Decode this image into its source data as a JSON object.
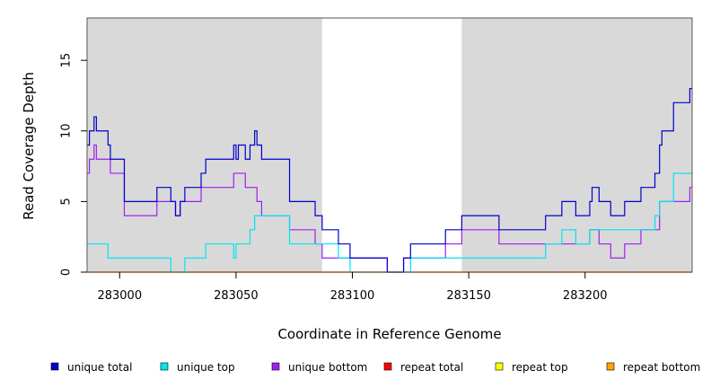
{
  "chart_data": {
    "type": "line",
    "style": "step",
    "title": "",
    "xlabel": "Coordinate in Reference Genome",
    "ylabel": "Read Coverage Depth",
    "xlim": [
      282986,
      283246
    ],
    "ylim": [
      0,
      18
    ],
    "x_ticks": [
      283000,
      283050,
      283100,
      283150,
      283200
    ],
    "y_ticks": [
      0,
      5,
      10,
      15
    ],
    "shaded_regions": [
      [
        282986,
        283087
      ],
      [
        283147,
        283246
      ]
    ],
    "shade_color": "#d9d9d9",
    "legend_position": "bottom",
    "series": [
      {
        "name": "unique total",
        "color": "#0000cd",
        "points": [
          [
            282986,
            9
          ],
          [
            282987,
            10
          ],
          [
            282989,
            11
          ],
          [
            282990,
            10
          ],
          [
            282995,
            9
          ],
          [
            282996,
            8
          ],
          [
            283002,
            5
          ],
          [
            283016,
            6
          ],
          [
            283022,
            5
          ],
          [
            283024,
            4
          ],
          [
            283026,
            5
          ],
          [
            283028,
            6
          ],
          [
            283035,
            7
          ],
          [
            283037,
            8
          ],
          [
            283049,
            9
          ],
          [
            283050,
            8
          ],
          [
            283051,
            9
          ],
          [
            283054,
            8
          ],
          [
            283056,
            9
          ],
          [
            283058,
            10
          ],
          [
            283059,
            9
          ],
          [
            283061,
            8
          ],
          [
            283073,
            5
          ],
          [
            283084,
            4
          ],
          [
            283087,
            3
          ],
          [
            283094,
            2
          ],
          [
            283099,
            1
          ],
          [
            283115,
            0
          ],
          [
            283122,
            1
          ],
          [
            283125,
            2
          ],
          [
            283140,
            3
          ],
          [
            283147,
            4
          ],
          [
            283163,
            3
          ],
          [
            283183,
            4
          ],
          [
            283190,
            5
          ],
          [
            283196,
            4
          ],
          [
            283202,
            5
          ],
          [
            283203,
            6
          ],
          [
            283206,
            5
          ],
          [
            283211,
            4
          ],
          [
            283217,
            5
          ],
          [
            283224,
            6
          ],
          [
            283230,
            7
          ],
          [
            283232,
            9
          ],
          [
            283233,
            10
          ],
          [
            283238,
            12
          ],
          [
            283245,
            13
          ]
        ]
      },
      {
        "name": "unique top",
        "color": "#00e5ee",
        "points": [
          [
            282986,
            2
          ],
          [
            282995,
            1
          ],
          [
            283022,
            0
          ],
          [
            283028,
            1
          ],
          [
            283037,
            2
          ],
          [
            283049,
            1
          ],
          [
            283050,
            2
          ],
          [
            283056,
            3
          ],
          [
            283058,
            4
          ],
          [
            283073,
            2
          ],
          [
            283084,
            2
          ],
          [
            283094,
            1
          ],
          [
            283099,
            0
          ],
          [
            283125,
            1
          ],
          [
            283140,
            1
          ],
          [
            283183,
            2
          ],
          [
            283190,
            3
          ],
          [
            283196,
            2
          ],
          [
            283202,
            3
          ],
          [
            283230,
            4
          ],
          [
            283232,
            5
          ],
          [
            283238,
            7
          ],
          [
            283245,
            7
          ]
        ]
      },
      {
        "name": "unique bottom",
        "color": "#a020f0",
        "points": [
          [
            282986,
            7
          ],
          [
            282987,
            8
          ],
          [
            282989,
            9
          ],
          [
            282990,
            8
          ],
          [
            282996,
            7
          ],
          [
            283002,
            4
          ],
          [
            283016,
            5
          ],
          [
            283024,
            4
          ],
          [
            283026,
            5
          ],
          [
            283035,
            6
          ],
          [
            283049,
            7
          ],
          [
            283054,
            6
          ],
          [
            283059,
            5
          ],
          [
            283061,
            4
          ],
          [
            283073,
            3
          ],
          [
            283084,
            2
          ],
          [
            283087,
            1
          ],
          [
            283115,
            0
          ],
          [
            283122,
            1
          ],
          [
            283140,
            2
          ],
          [
            283147,
            3
          ],
          [
            283163,
            2
          ],
          [
            283202,
            3
          ],
          [
            283206,
            2
          ],
          [
            283211,
            1
          ],
          [
            283217,
            2
          ],
          [
            283224,
            3
          ],
          [
            283232,
            5
          ],
          [
            283245,
            6
          ]
        ]
      },
      {
        "name": "repeat total",
        "color": "#ff0000",
        "points": [
          [
            282986,
            0
          ],
          [
            283246,
            0
          ]
        ]
      },
      {
        "name": "repeat top",
        "color": "#ffff00",
        "points": [
          [
            282986,
            0
          ],
          [
            283246,
            0
          ]
        ]
      },
      {
        "name": "repeat bottom",
        "color": "#ffa500",
        "points": [
          [
            282986,
            0
          ],
          [
            283246,
            0
          ]
        ]
      }
    ]
  }
}
